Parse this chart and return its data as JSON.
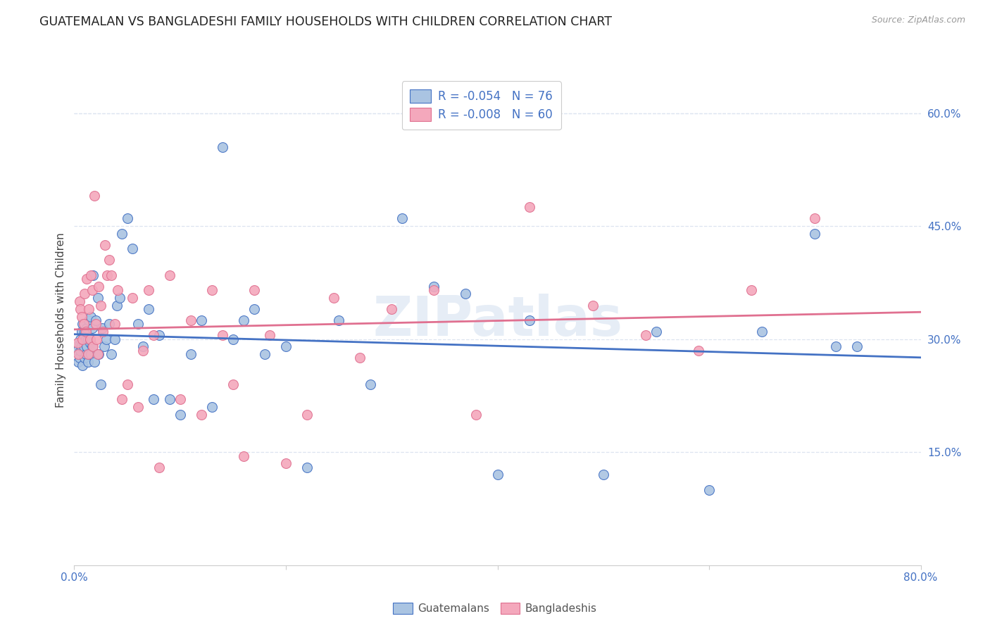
{
  "title": "GUATEMALAN VS BANGLADESHI FAMILY HOUSEHOLDS WITH CHILDREN CORRELATION CHART",
  "source": "Source: ZipAtlas.com",
  "ylabel": "Family Households with Children",
  "xlim": [
    0.0,
    0.8
  ],
  "ylim": [
    0.0,
    0.65
  ],
  "xtick_vals": [
    0.0,
    0.2,
    0.4,
    0.6,
    0.8
  ],
  "xticklabels": [
    "0.0%",
    "",
    "",
    "",
    "80.0%"
  ],
  "ytick_vals": [
    0.15,
    0.3,
    0.45,
    0.6
  ],
  "yticklabels": [
    "15.0%",
    "30.0%",
    "45.0%",
    "60.0%"
  ],
  "legend_line1": "R = -0.054   N = 76",
  "legend_line2": "R = -0.008   N = 60",
  "color_blue": "#aac4e2",
  "color_pink": "#f4a8bc",
  "color_blue_text": "#4472c4",
  "color_pink_text": "#e07090",
  "watermark": "ZIPatlas",
  "background_color": "#ffffff",
  "grid_color": "#dde4f0",
  "title_fontsize": 12.5,
  "label_fontsize": 11,
  "tick_fontsize": 11,
  "guatemalans_x": [
    0.003,
    0.004,
    0.005,
    0.005,
    0.006,
    0.006,
    0.007,
    0.007,
    0.008,
    0.008,
    0.009,
    0.009,
    0.01,
    0.01,
    0.011,
    0.011,
    0.012,
    0.012,
    0.013,
    0.013,
    0.014,
    0.014,
    0.015,
    0.015,
    0.016,
    0.016,
    0.017,
    0.017,
    0.018,
    0.019,
    0.02,
    0.022,
    0.023,
    0.025,
    0.026,
    0.028,
    0.03,
    0.033,
    0.035,
    0.038,
    0.04,
    0.043,
    0.045,
    0.05,
    0.055,
    0.06,
    0.065,
    0.07,
    0.075,
    0.08,
    0.09,
    0.1,
    0.11,
    0.12,
    0.13,
    0.14,
    0.15,
    0.16,
    0.17,
    0.18,
    0.2,
    0.22,
    0.25,
    0.28,
    0.31,
    0.34,
    0.37,
    0.4,
    0.43,
    0.5,
    0.55,
    0.6,
    0.65,
    0.7,
    0.72,
    0.74
  ],
  "guatemalans_y": [
    0.285,
    0.27,
    0.295,
    0.275,
    0.3,
    0.285,
    0.31,
    0.29,
    0.265,
    0.32,
    0.29,
    0.305,
    0.31,
    0.275,
    0.28,
    0.3,
    0.315,
    0.29,
    0.27,
    0.3,
    0.325,
    0.28,
    0.295,
    0.3,
    0.33,
    0.28,
    0.315,
    0.29,
    0.385,
    0.27,
    0.325,
    0.355,
    0.28,
    0.24,
    0.315,
    0.29,
    0.3,
    0.32,
    0.28,
    0.3,
    0.345,
    0.355,
    0.44,
    0.46,
    0.42,
    0.32,
    0.29,
    0.34,
    0.22,
    0.305,
    0.22,
    0.2,
    0.28,
    0.325,
    0.21,
    0.555,
    0.3,
    0.325,
    0.34,
    0.28,
    0.29,
    0.13,
    0.325,
    0.24,
    0.46,
    0.37,
    0.36,
    0.12,
    0.325,
    0.12,
    0.31,
    0.1,
    0.31,
    0.44,
    0.29,
    0.29
  ],
  "bangladeshis_x": [
    0.003,
    0.004,
    0.005,
    0.006,
    0.007,
    0.008,
    0.009,
    0.01,
    0.011,
    0.012,
    0.013,
    0.014,
    0.015,
    0.016,
    0.017,
    0.018,
    0.019,
    0.02,
    0.021,
    0.022,
    0.023,
    0.025,
    0.027,
    0.029,
    0.031,
    0.033,
    0.035,
    0.038,
    0.041,
    0.045,
    0.05,
    0.055,
    0.06,
    0.065,
    0.07,
    0.075,
    0.08,
    0.09,
    0.1,
    0.11,
    0.12,
    0.13,
    0.14,
    0.15,
    0.16,
    0.17,
    0.185,
    0.2,
    0.22,
    0.245,
    0.27,
    0.3,
    0.34,
    0.38,
    0.43,
    0.49,
    0.54,
    0.59,
    0.64,
    0.7
  ],
  "bangladeshis_y": [
    0.295,
    0.28,
    0.35,
    0.34,
    0.33,
    0.3,
    0.32,
    0.36,
    0.31,
    0.38,
    0.28,
    0.34,
    0.3,
    0.385,
    0.365,
    0.29,
    0.49,
    0.32,
    0.3,
    0.28,
    0.37,
    0.345,
    0.31,
    0.425,
    0.385,
    0.405,
    0.385,
    0.32,
    0.365,
    0.22,
    0.24,
    0.355,
    0.21,
    0.285,
    0.365,
    0.305,
    0.13,
    0.385,
    0.22,
    0.325,
    0.2,
    0.365,
    0.305,
    0.24,
    0.145,
    0.365,
    0.305,
    0.135,
    0.2,
    0.355,
    0.275,
    0.34,
    0.365,
    0.2,
    0.475,
    0.345,
    0.305,
    0.285,
    0.365,
    0.46
  ]
}
